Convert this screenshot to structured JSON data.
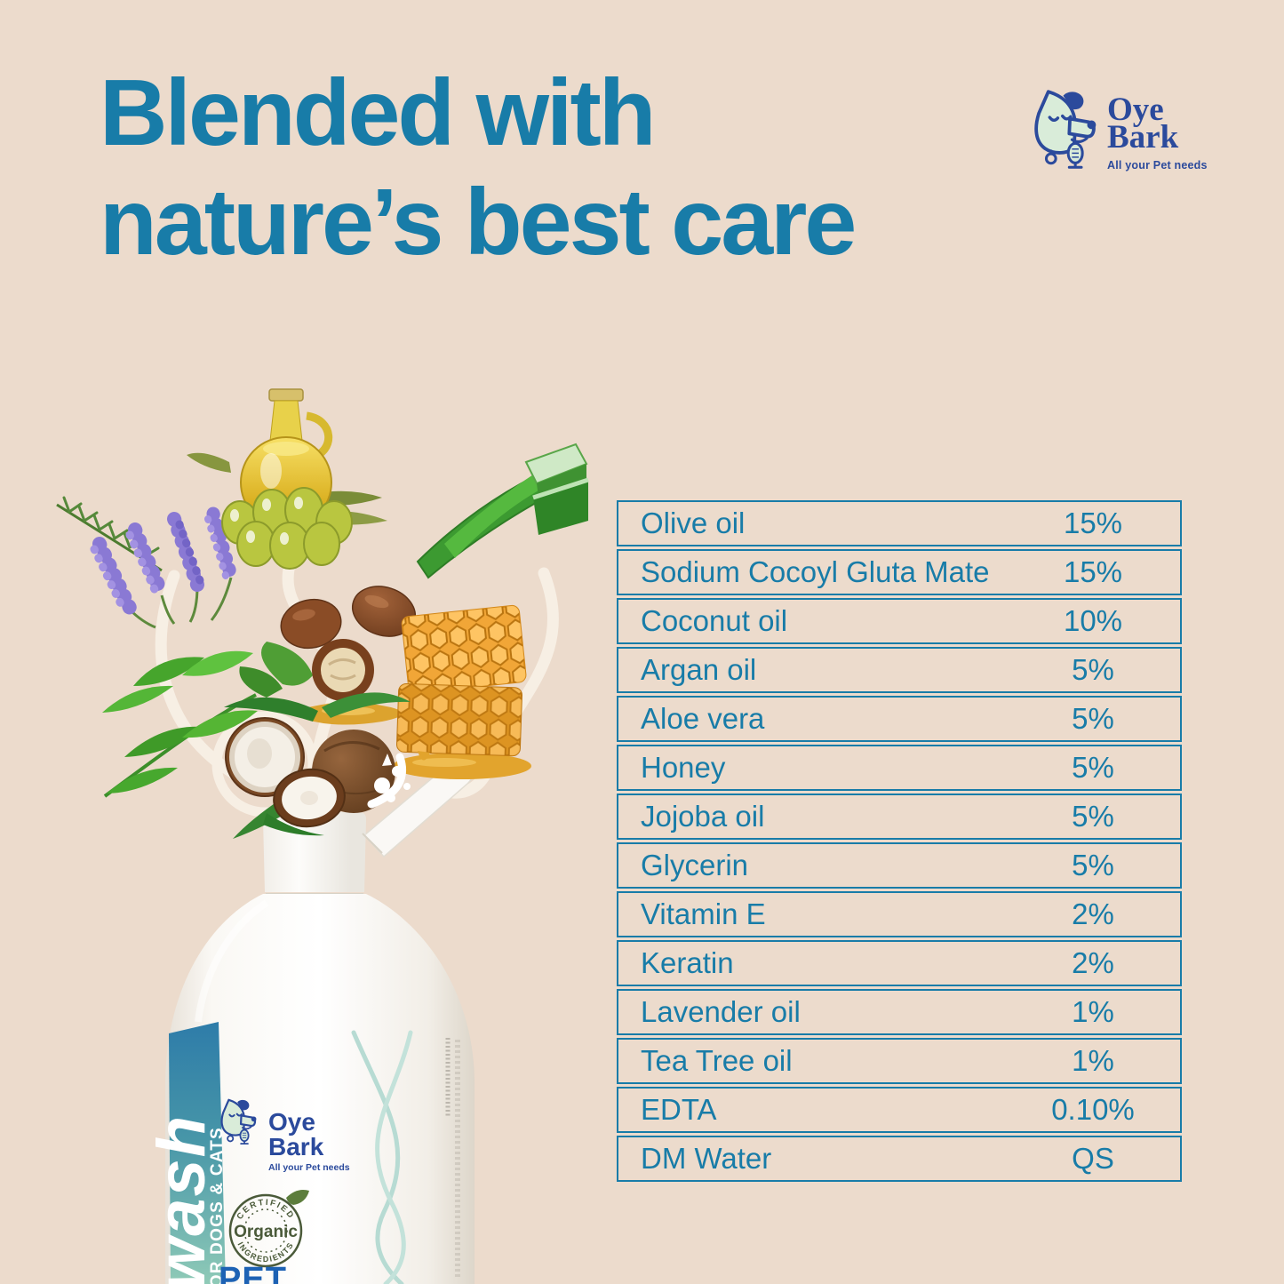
{
  "header": {
    "title_line1": "Blended with",
    "title_line2": "nature’s best care"
  },
  "brand_logo": {
    "name_line1": "Oye",
    "name_line2": "Bark",
    "tagline": "All your Pet needs",
    "icon": "dog-with-microphone-icon"
  },
  "ingredients_table": {
    "rows": [
      {
        "name": "Olive oil",
        "value": "15%"
      },
      {
        "name": "Sodium Cocoyl Gluta Mate",
        "value": "15%"
      },
      {
        "name": "Coconut oil",
        "value": "10%"
      },
      {
        "name": "Argan oil",
        "value": "5%"
      },
      {
        "name": "Aloe vera",
        "value": "5%"
      },
      {
        "name": "Honey",
        "value": "5%"
      },
      {
        "name": "Jojoba oil",
        "value": "5%"
      },
      {
        "name": "Glycerin",
        "value": "5%"
      },
      {
        "name": "Vitamin E",
        "value": "2%"
      },
      {
        "name": "Keratin",
        "value": "2%"
      },
      {
        "name": "Lavender oil",
        "value": "1%"
      },
      {
        "name": "Tea Tree oil",
        "value": "1%"
      },
      {
        "name": "EDTA",
        "value": "0.10%"
      },
      {
        "name": "DM Water",
        "value": "QS"
      }
    ]
  },
  "ingredient_icons": [
    "lavender",
    "rosemary",
    "olive-oil-jug",
    "aloe-vera",
    "argan-nuts",
    "green-tea-leaves",
    "honeycomb",
    "coconut"
  ],
  "bottle": {
    "strip_word": "wash",
    "strip_sub": "FOR DOGS & CATS",
    "label_logo_line1": "Oye",
    "label_logo_line2": "Bark",
    "label_tagline": "All your Pet needs",
    "badge_top": "CERTIFIED",
    "badge_center": "Organic",
    "badge_bottom": "INGREDIENTS",
    "bottom_text": "PET"
  },
  "colors": {
    "background": "#ecdbcc",
    "accent_teal": "#187ca8",
    "brand_navy": "#2b4a9c",
    "brand_mint": "#d9ecd9",
    "strip_gradient_top": "#2e7ca9",
    "strip_gradient_bottom": "#8fcab7",
    "badge_green": "#4a5a39",
    "swirl_cream": "#f7efe4"
  }
}
